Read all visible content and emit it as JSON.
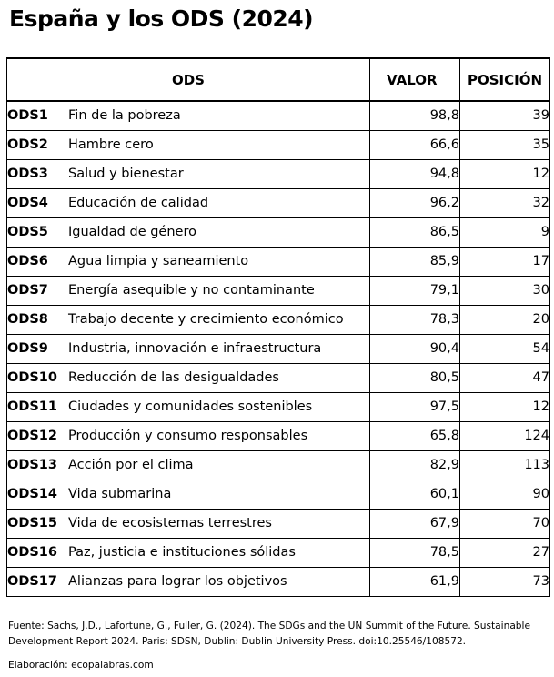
{
  "title": "España y los ODS (2024)",
  "table": {
    "headers": {
      "ods": "ODS",
      "valor": "VALOR",
      "posicion": "POSICIÓN"
    },
    "rows": [
      {
        "code": "ODS1",
        "name": "Fin de la pobreza",
        "valor": "98,8",
        "posicion": "39"
      },
      {
        "code": "ODS2",
        "name": "Hambre cero",
        "valor": "66,6",
        "posicion": "35"
      },
      {
        "code": "ODS3",
        "name": "Salud y  bienestar",
        "valor": "94,8",
        "posicion": "12"
      },
      {
        "code": "ODS4",
        "name": "Educación de calidad",
        "valor": "96,2",
        "posicion": "32"
      },
      {
        "code": "ODS5",
        "name": "Igualdad de género",
        "valor": "86,5",
        "posicion": "9"
      },
      {
        "code": "ODS6",
        "name": "Agua limpia y saneamiento",
        "valor": "85,9",
        "posicion": "17"
      },
      {
        "code": "ODS7",
        "name": "Energía asequible y no contaminante",
        "valor": "79,1",
        "posicion": "30"
      },
      {
        "code": "ODS8",
        "name": "Trabajo decente y crecimiento económico",
        "valor": "78,3",
        "posicion": "20"
      },
      {
        "code": "ODS9",
        "name": "Industria, innovación e infraestructura",
        "valor": "90,4",
        "posicion": "54"
      },
      {
        "code": "ODS10",
        "name": "Reducción de las desigualdades",
        "valor": "80,5",
        "posicion": "47"
      },
      {
        "code": "ODS11",
        "name": "Ciudades y comunidades sostenibles",
        "valor": "97,5",
        "posicion": "12"
      },
      {
        "code": "ODS12",
        "name": "Producción y consumo responsables",
        "valor": "65,8",
        "posicion": "124"
      },
      {
        "code": "ODS13",
        "name": "Acción por el clima",
        "valor": "82,9",
        "posicion": "113"
      },
      {
        "code": "ODS14",
        "name": "Vida submarina",
        "valor": "60,1",
        "posicion": "90"
      },
      {
        "code": "ODS15",
        "name": "Vida de ecosistemas terrestres",
        "valor": "67,9",
        "posicion": "70"
      },
      {
        "code": "ODS16",
        "name": "Paz, justicia e instituciones sólidas",
        "valor": "78,5",
        "posicion": "27"
      },
      {
        "code": "ODS17",
        "name": "Alianzas para lograr los objetivos",
        "valor": "61,9",
        "posicion": "73"
      }
    ]
  },
  "footer": {
    "source": "Fuente: Sachs, J.D., Lafortune, G., Fuller, G. (2024). The SDGs and the UN Summit of the Future. Sustainable Development Report 2024. Paris: SDSN, Dublin: Dublin University Press. doi:10.25546/108572.",
    "credit": "Elaboración: ecopalabras.com"
  }
}
